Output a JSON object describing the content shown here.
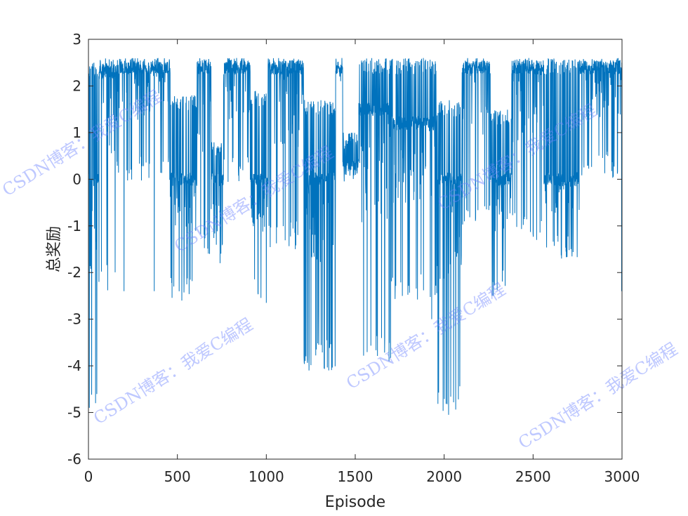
{
  "chart_data": {
    "type": "line",
    "title": "",
    "xlabel": "Episode",
    "ylabel": "总奖励",
    "xlim": [
      0,
      3000
    ],
    "ylim": [
      -6,
      3
    ],
    "xticks": [
      0,
      500,
      1000,
      1500,
      2000,
      2500,
      3000
    ],
    "yticks": [
      -6,
      -5,
      -4,
      -3,
      -2,
      -1,
      0,
      1,
      2,
      3
    ],
    "grid": false,
    "legend": "none",
    "line_color": "#0072BD",
    "series": [
      {
        "name": "",
        "episodes_total": 3000,
        "segments": [
          {
            "x": [
              0,
              60
            ],
            "low": -4.9,
            "high": 2.5,
            "base": 0.0
          },
          {
            "x": [
              60,
              160
            ],
            "low": -2.4,
            "high": 2.6,
            "base": 2.3
          },
          {
            "x": [
              160,
              460
            ],
            "low": -0.1,
            "high": 2.6,
            "base": 2.4
          },
          {
            "x": [
              460,
              610
            ],
            "low": -2.6,
            "high": 1.8,
            "base": 0.0
          },
          {
            "x": [
              610,
              690
            ],
            "low": -1.7,
            "high": 2.6,
            "base": 2.4
          },
          {
            "x": [
              690,
              760
            ],
            "low": -1.6,
            "high": 0.8,
            "base": 0.0
          },
          {
            "x": [
              760,
              910
            ],
            "low": -0.1,
            "high": 2.6,
            "base": 2.4
          },
          {
            "x": [
              910,
              1010
            ],
            "low": -2.6,
            "high": 1.9,
            "base": 0.0
          },
          {
            "x": [
              1010,
              1210
            ],
            "low": -1.5,
            "high": 2.6,
            "base": 2.4
          },
          {
            "x": [
              1210,
              1390
            ],
            "low": -4.1,
            "high": 1.7,
            "base": 0.0
          },
          {
            "x": [
              1390,
              1430
            ],
            "low": 2.1,
            "high": 2.6,
            "base": 2.4
          },
          {
            "x": [
              1430,
              1520
            ],
            "low": -0.2,
            "high": 1.0,
            "base": 0.3
          },
          {
            "x": [
              1520,
              1700
            ],
            "low": -3.9,
            "high": 2.6,
            "base": 1.5
          },
          {
            "x": [
              1700,
              1960
            ],
            "low": -2.6,
            "high": 2.6,
            "base": 1.2
          },
          {
            "x": [
              1960,
              2100
            ],
            "low": -5.0,
            "high": 1.7,
            "base": 0.0
          },
          {
            "x": [
              2100,
              2260
            ],
            "low": -1.0,
            "high": 2.6,
            "base": 2.4
          },
          {
            "x": [
              2260,
              2380
            ],
            "low": -2.5,
            "high": 1.5,
            "base": 0.0
          },
          {
            "x": [
              2380,
              2560
            ],
            "low": -1.3,
            "high": 2.6,
            "base": 2.4
          },
          {
            "x": [
              2560,
              2760
            ],
            "low": -1.7,
            "high": 2.6,
            "base": 0.0
          },
          {
            "x": [
              2760,
              3000
            ],
            "low": 0.0,
            "high": 2.6,
            "base": 2.4
          }
        ],
        "spikes": [
          {
            "x": 5,
            "y": -4.9
          },
          {
            "x": 40,
            "y": -4.8
          },
          {
            "x": 200,
            "y": -2.4
          },
          {
            "x": 370,
            "y": -2.4
          },
          {
            "x": 480,
            "y": -2.3
          },
          {
            "x": 525,
            "y": -2.6
          },
          {
            "x": 740,
            "y": -1.8
          },
          {
            "x": 1000,
            "y": -2.65
          },
          {
            "x": 1240,
            "y": -4.1
          },
          {
            "x": 1290,
            "y": -2.8
          },
          {
            "x": 1340,
            "y": -3.45
          },
          {
            "x": 1690,
            "y": -3.9
          },
          {
            "x": 1930,
            "y": -3.0
          },
          {
            "x": 2025,
            "y": -5.05
          },
          {
            "x": 2270,
            "y": -2.5
          },
          {
            "x": 2520,
            "y": -1.3
          },
          {
            "x": 2660,
            "y": -1.7
          },
          {
            "x": 2998,
            "y": -2.4
          }
        ]
      }
    ],
    "watermark_text": "CSDN博客：我爱C编程"
  }
}
